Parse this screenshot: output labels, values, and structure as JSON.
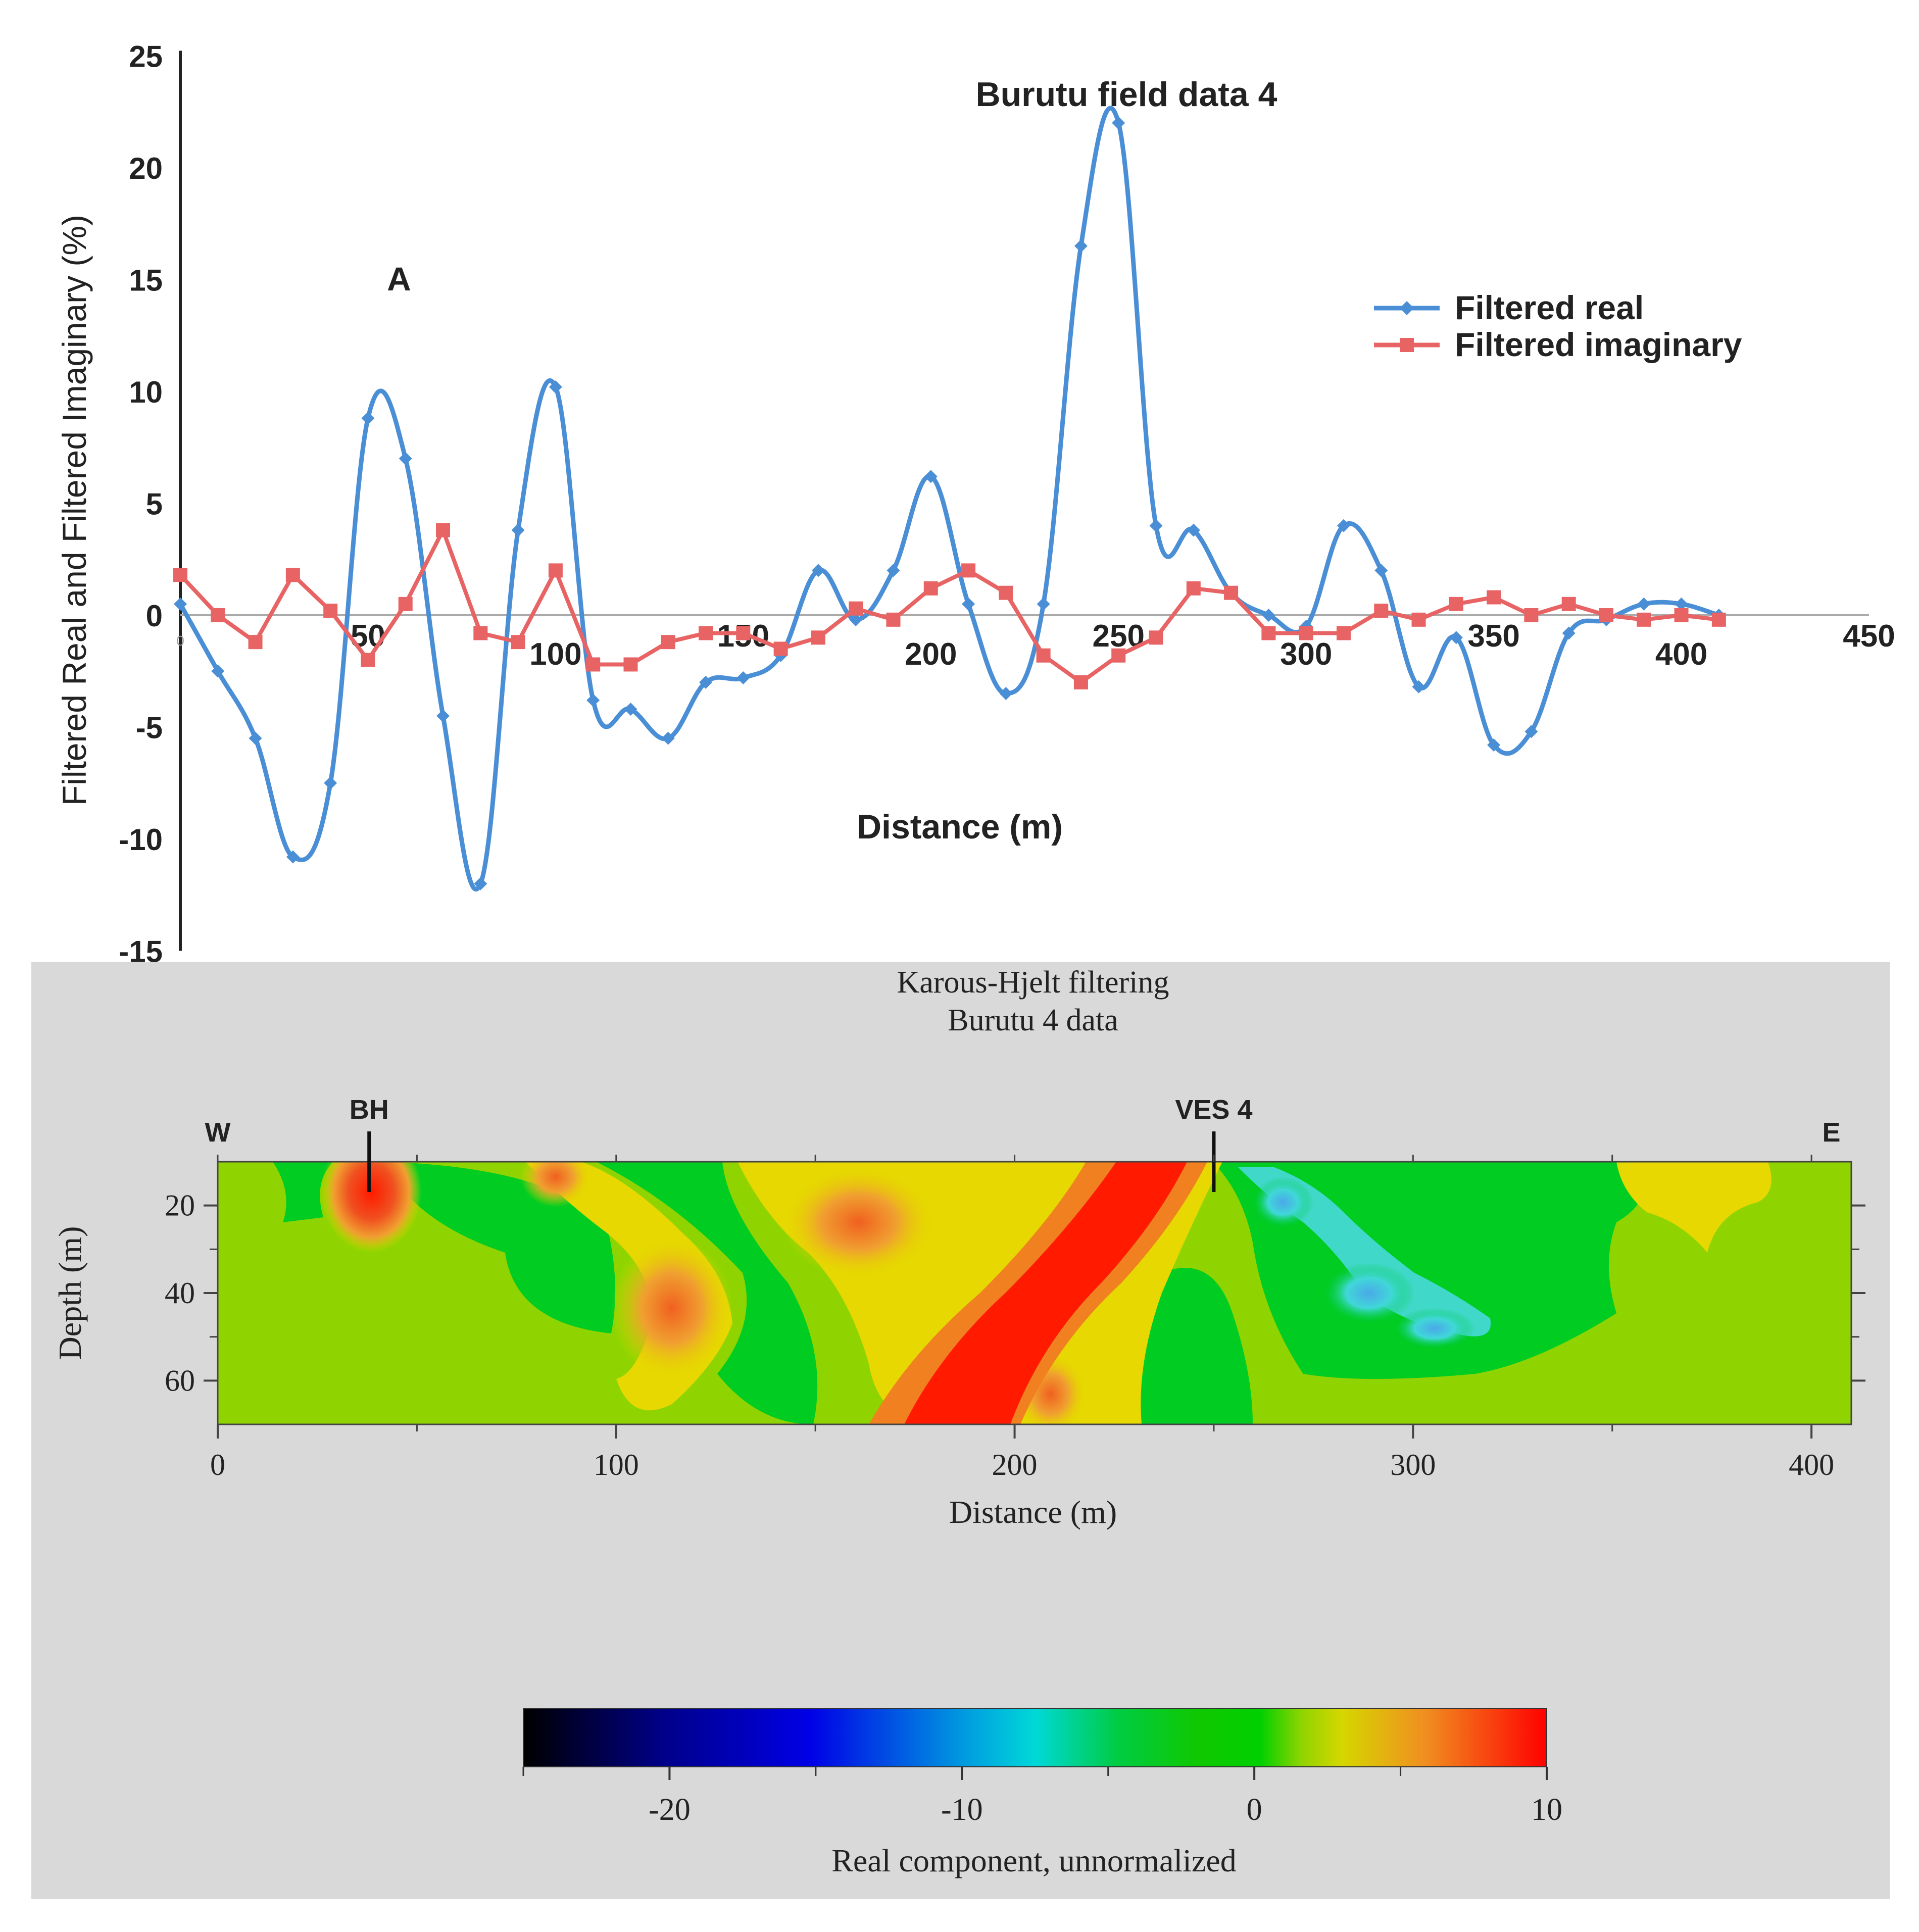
{
  "colors": {
    "real": "#4a8fd6",
    "imag": "#e86464",
    "panel_bg": "#d9d9d9",
    "section_base": "#8fd400"
  },
  "chart_data": [
    {
      "type": "line",
      "title": "Burutu field data 4",
      "xlabel": "Distance (m)",
      "ylabel": "Filtered Real and Filtered Imaginary (%)",
      "annotation": "A",
      "xlim": [
        0,
        450
      ],
      "ylim": [
        -15,
        25
      ],
      "xticks": [
        0,
        50,
        100,
        150,
        200,
        250,
        300,
        350,
        400,
        450
      ],
      "xtick_labels": [
        "0",
        "50",
        "100",
        "150",
        "200",
        "250",
        "300",
        "350",
        "400",
        "450"
      ],
      "yticks": [
        25,
        20,
        15,
        10,
        5,
        0,
        -5,
        -10,
        -15
      ],
      "ytick_labels": [
        "25",
        "20",
        "15",
        "10",
        "5",
        "0",
        "-5",
        "-10",
        "-15"
      ],
      "legend_position": "right",
      "series": [
        {
          "name": "Filtered real",
          "marker": "diamond",
          "x": [
            0,
            10,
            20,
            30,
            40,
            50,
            60,
            70,
            80,
            90,
            100,
            110,
            120,
            130,
            140,
            150,
            160,
            170,
            180,
            190,
            200,
            210,
            220,
            230,
            240,
            250,
            260,
            270,
            280,
            290,
            300,
            310,
            320,
            330,
            340,
            350,
            360,
            370,
            380,
            390,
            400,
            410
          ],
          "y": [
            0.5,
            -2.5,
            -5.5,
            -10.8,
            -7.5,
            8.8,
            7,
            -4.5,
            -12,
            3.8,
            10.2,
            -3.8,
            -4.2,
            -5.5,
            -3,
            -2.8,
            -1.8,
            2,
            -0.2,
            2,
            6.2,
            0.5,
            -3.5,
            0.5,
            16.5,
            22,
            4,
            3.8,
            1,
            0,
            -0.5,
            4,
            2,
            -3.2,
            -1,
            -5.8,
            -5.2,
            -0.8,
            -0.2,
            0.5,
            0.5,
            0
          ]
        },
        {
          "name": "Filtered imaginary",
          "marker": "square",
          "x": [
            0,
            10,
            20,
            30,
            40,
            50,
            60,
            70,
            80,
            90,
            100,
            110,
            120,
            130,
            140,
            150,
            160,
            170,
            180,
            190,
            200,
            210,
            220,
            230,
            240,
            250,
            260,
            270,
            280,
            290,
            300,
            310,
            320,
            330,
            340,
            350,
            360,
            370,
            380,
            390,
            400,
            410
          ],
          "y": [
            1.8,
            0,
            -1.2,
            1.8,
            0.2,
            -2,
            0.5,
            3.8,
            -0.8,
            -1.2,
            2,
            -2.2,
            -2.2,
            -1.2,
            -0.8,
            -0.8,
            -1.5,
            -1,
            0.3,
            -0.2,
            1.2,
            2,
            1,
            -1.8,
            -3,
            -1.8,
            -1,
            1.2,
            1,
            -0.8,
            -0.8,
            -0.8,
            0.2,
            -0.2,
            0.5,
            0.8,
            0,
            0.5,
            0,
            -0.2,
            0,
            -0.2
          ]
        }
      ]
    },
    {
      "type": "heatmap",
      "title": "Karous-Hjelt filtering",
      "subtitle": "Burutu 4 data",
      "xlabel": "Distance (m)",
      "ylabel": "Depth (m)",
      "xlim": [
        0,
        410
      ],
      "ylim": [
        10,
        70
      ],
      "xticks": [
        0,
        100,
        200,
        300,
        400
      ],
      "xtick_labels": [
        "0",
        "100",
        "200",
        "300",
        "400"
      ],
      "yticks": [
        20,
        40,
        60
      ],
      "ytick_labels": [
        "20",
        "40",
        "60"
      ],
      "markers": [
        {
          "label": "W",
          "x": 0
        },
        {
          "label": "BH",
          "x": 38
        },
        {
          "label": "VES 4",
          "x": 250
        },
        {
          "label": "E",
          "x": 405
        }
      ],
      "colorbar": {
        "label": "Real component, unnormalized",
        "range": [
          -25,
          10
        ],
        "ticks": [
          -20,
          -10,
          0,
          10
        ],
        "tick_labels": [
          "-20",
          "-10",
          "0",
          "10"
        ]
      },
      "anomalies": [
        {
          "x": 38,
          "depth": 18,
          "value": 8
        },
        {
          "x": 118,
          "depth": 45,
          "value": 6
        },
        {
          "x": 160,
          "depth": 32,
          "value": 4
        },
        {
          "x": 195,
          "depth": 55,
          "value": 10
        },
        {
          "x": 225,
          "depth": 25,
          "value": 10
        },
        {
          "x": 290,
          "depth": 40,
          "value": -12
        },
        {
          "x": 308,
          "depth": 50,
          "value": -13
        },
        {
          "x": 370,
          "depth": 22,
          "value": 1
        }
      ]
    }
  ]
}
